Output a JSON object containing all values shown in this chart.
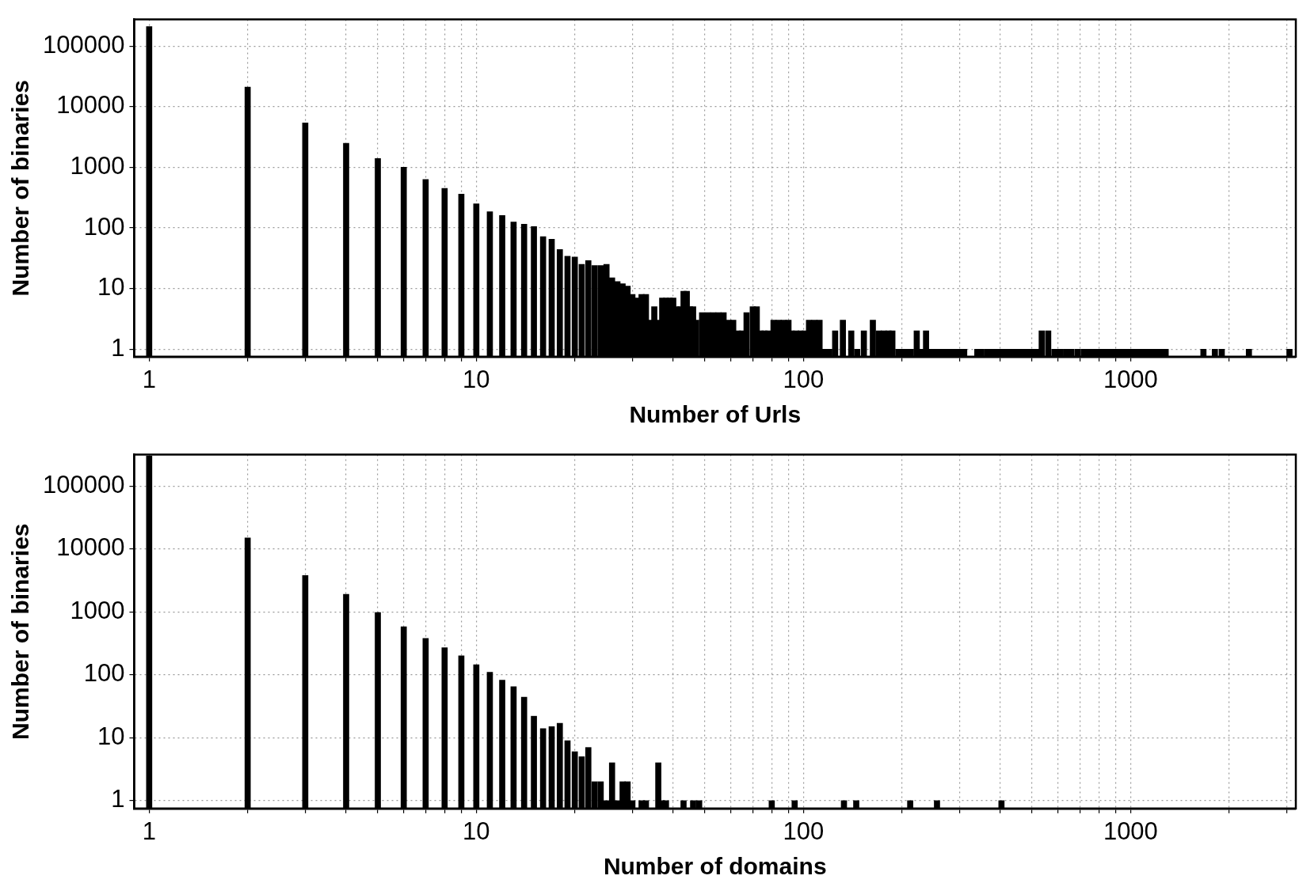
{
  "chart_data": [
    {
      "type": "bar",
      "xlabel": "Number of Urls",
      "ylabel": "Number of binaries",
      "log": "xy",
      "grid": true,
      "color": "#000000",
      "xlim": [
        0.9,
        3200
      ],
      "ylim": [
        0.75,
        275000
      ],
      "xticks": [
        1,
        {
          "value": 2,
          "label": null
        },
        {
          "value": 3,
          "label": null
        },
        {
          "value": 4,
          "label": null
        },
        {
          "value": 5,
          "label": null
        },
        {
          "value": 6,
          "label": null
        },
        {
          "value": 7,
          "label": null
        },
        {
          "value": 8,
          "label": null
        },
        {
          "value": 9,
          "label": null
        },
        10,
        {
          "value": 20,
          "label": null
        },
        {
          "value": 30,
          "label": null
        },
        {
          "value": 40,
          "label": null
        },
        {
          "value": 50,
          "label": null
        },
        {
          "value": 60,
          "label": null
        },
        {
          "value": 70,
          "label": null
        },
        {
          "value": 80,
          "label": null
        },
        {
          "value": 90,
          "label": null
        },
        100,
        {
          "value": 200,
          "label": null
        },
        {
          "value": 300,
          "label": null
        },
        {
          "value": 400,
          "label": null
        },
        {
          "value": 500,
          "label": null
        },
        {
          "value": 600,
          "label": null
        },
        {
          "value": 700,
          "label": null
        },
        {
          "value": 800,
          "label": null
        },
        {
          "value": 900,
          "label": null
        },
        1000,
        {
          "value": 2000,
          "label": null
        },
        {
          "value": 3000,
          "label": null
        }
      ],
      "yticks": [
        1,
        10,
        100,
        1000,
        10000,
        100000
      ],
      "x": [
        1,
        2,
        3,
        4,
        5,
        6,
        7,
        8,
        9,
        10,
        11,
        12,
        13,
        14,
        15,
        16,
        17,
        18,
        19,
        20,
        21,
        22,
        23,
        24,
        25,
        26,
        27,
        28,
        29,
        30,
        31,
        32,
        33,
        34,
        35,
        36,
        37,
        38,
        39,
        40,
        41,
        42,
        43,
        44,
        45,
        46,
        47,
        49,
        51,
        53,
        55,
        57,
        59,
        61,
        63,
        65,
        67,
        70,
        72,
        74,
        76,
        78,
        81,
        84,
        87,
        90,
        92,
        95,
        98,
        101,
        104,
        108,
        112,
        116,
        120,
        125,
        132,
        140,
        146,
        153,
        163,
        170,
        176,
        182,
        187,
        195,
        201,
        207,
        213,
        222,
        230,
        237,
        246,
        254,
        262,
        270,
        280,
        290,
        300,
        310,
        340,
        350,
        365,
        380,
        395,
        410,
        425,
        440,
        455,
        470,
        485,
        500,
        515,
        535,
        560,
        585,
        610,
        635,
        660,
        690,
        720,
        750,
        780,
        810,
        840,
        870,
        900,
        935,
        970,
        1005,
        1040,
        1080,
        1120,
        1160,
        1200,
        1240,
        1280,
        1670,
        1810,
        1900,
        2300,
        3060
      ],
      "values": [
        210000,
        21000,
        5400,
        2500,
        1400,
        1000,
        630,
        450,
        360,
        250,
        185,
        160,
        125,
        115,
        105,
        72,
        65,
        44,
        34,
        33,
        25,
        29,
        24,
        24,
        25,
        15,
        13,
        12,
        11,
        8,
        7,
        8,
        8,
        3,
        5,
        3,
        7,
        7,
        7,
        7,
        5,
        5,
        9,
        9,
        5,
        5,
        3,
        4,
        4,
        4,
        4,
        4,
        3,
        3,
        2,
        2,
        4,
        5,
        5,
        2,
        2,
        2,
        3,
        3,
        3,
        3,
        2,
        2,
        2,
        2,
        3,
        3,
        3,
        1,
        1,
        2,
        3,
        2,
        1,
        2,
        3,
        2,
        2,
        2,
        2,
        1,
        1,
        1,
        1,
        2,
        1,
        2,
        1,
        1,
        1,
        1,
        1,
        1,
        1,
        1,
        1,
        1,
        1,
        1,
        1,
        1,
        1,
        1,
        1,
        1,
        1,
        1,
        1,
        2,
        2,
        1,
        1,
        1,
        1,
        1,
        1,
        1,
        1,
        1,
        1,
        1,
        1,
        1,
        1,
        1,
        1,
        1,
        1,
        1,
        1,
        1,
        1,
        1,
        1,
        1,
        1,
        1
      ]
    },
    {
      "type": "bar",
      "xlabel": "Number of domains",
      "ylabel": "Number of binaries",
      "log": "xy",
      "grid": true,
      "color": "#000000",
      "xlim": [
        0.9,
        3200
      ],
      "ylim": [
        0.75,
        316000
      ],
      "xticks": [
        1,
        {
          "value": 2,
          "label": null
        },
        {
          "value": 3,
          "label": null
        },
        {
          "value": 4,
          "label": null
        },
        {
          "value": 5,
          "label": null
        },
        {
          "value": 6,
          "label": null
        },
        {
          "value": 7,
          "label": null
        },
        {
          "value": 8,
          "label": null
        },
        {
          "value": 9,
          "label": null
        },
        10,
        {
          "value": 20,
          "label": null
        },
        {
          "value": 30,
          "label": null
        },
        {
          "value": 40,
          "label": null
        },
        {
          "value": 50,
          "label": null
        },
        {
          "value": 60,
          "label": null
        },
        {
          "value": 70,
          "label": null
        },
        {
          "value": 80,
          "label": null
        },
        {
          "value": 90,
          "label": null
        },
        100,
        {
          "value": 200,
          "label": null
        },
        {
          "value": 300,
          "label": null
        },
        {
          "value": 400,
          "label": null
        },
        {
          "value": 500,
          "label": null
        },
        {
          "value": 600,
          "label": null
        },
        {
          "value": 700,
          "label": null
        },
        {
          "value": 800,
          "label": null
        },
        {
          "value": 900,
          "label": null
        },
        1000,
        {
          "value": 2000,
          "label": null
        },
        {
          "value": 3000,
          "label": null
        }
      ],
      "yticks": [
        1,
        10,
        100,
        1000,
        10000,
        100000
      ],
      "x": [
        1,
        2,
        3,
        4,
        5,
        6,
        7,
        8,
        9,
        10,
        11,
        12,
        13,
        14,
        15,
        16,
        17,
        18,
        19,
        20,
        21,
        22,
        23,
        24,
        25,
        26,
        27,
        28,
        29,
        30,
        32,
        33,
        36,
        37,
        38,
        43,
        46,
        48,
        80,
        94,
        133,
        145,
        212,
        256,
        403
      ],
      "values": [
        300000,
        15000,
        3800,
        1900,
        980,
        580,
        380,
        270,
        200,
        145,
        110,
        82,
        65,
        44,
        22,
        14,
        15,
        17,
        9,
        6,
        5,
        7,
        2,
        2,
        1,
        4,
        1,
        2,
        2,
        1,
        1,
        1,
        4,
        1,
        1,
        1,
        1,
        1,
        1,
        1,
        1,
        1,
        1,
        1,
        1
      ]
    }
  ]
}
